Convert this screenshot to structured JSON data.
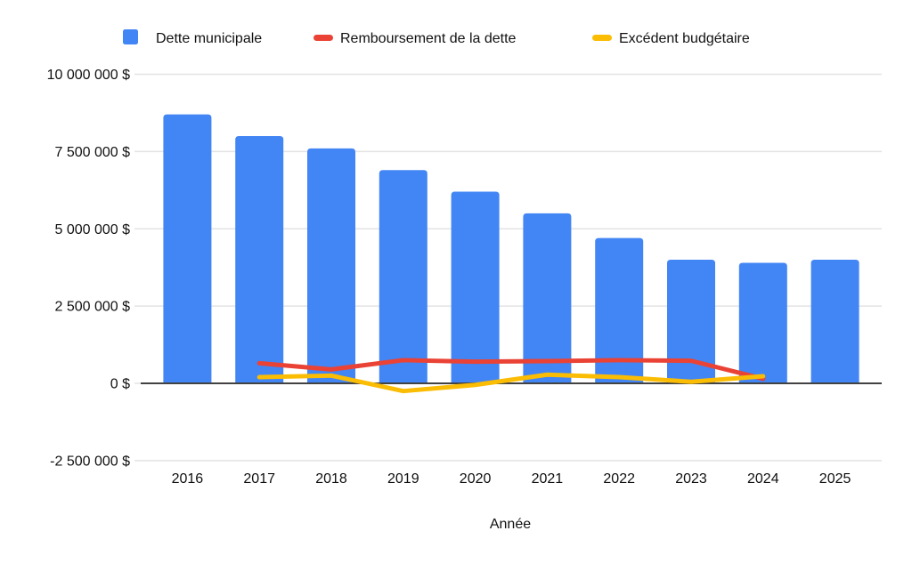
{
  "chart_title": "",
  "legend": {
    "position": "top",
    "items": [
      {
        "label": "Dette municipale",
        "swatch": "square",
        "color": "#4285F4"
      },
      {
        "label": "Remboursement de la dette",
        "swatch": "dash",
        "color": "#EA4335"
      },
      {
        "label": "Excédent budgétaire",
        "swatch": "dash",
        "color": "#FBBC04"
      }
    ]
  },
  "chart_data": {
    "type": "combo",
    "categories": [
      "2016",
      "2017",
      "2018",
      "2019",
      "2020",
      "2021",
      "2022",
      "2023",
      "2024",
      "2025"
    ],
    "series": [
      {
        "name": "Dette municipale",
        "type": "bar",
        "color": "#4285F4",
        "values": [
          8700000,
          8000000,
          7600000,
          6900000,
          6200000,
          5500000,
          4700000,
          4000000,
          3900000,
          4000000
        ]
      },
      {
        "name": "Remboursement de la dette",
        "type": "line",
        "color": "#EA4335",
        "values": [
          null,
          650000,
          450000,
          750000,
          700000,
          720000,
          750000,
          730000,
          150000,
          null
        ]
      },
      {
        "name": "Excédent budgétaire",
        "type": "line",
        "color": "#FBBC04",
        "values": [
          null,
          200000,
          250000,
          -250000,
          -50000,
          280000,
          200000,
          50000,
          230000,
          null
        ]
      }
    ],
    "title": "",
    "xlabel": "Année",
    "ylabel": "",
    "ylim": [
      -2500000,
      10000000
    ],
    "yticks": [
      {
        "value": 10000000,
        "label": "10 000 000 $"
      },
      {
        "value": 7500000,
        "label": "7 500 000 $"
      },
      {
        "value": 5000000,
        "label": "5 000 000 $"
      },
      {
        "value": 2500000,
        "label": "2 500 000 $"
      },
      {
        "value": 0,
        "label": "0 $"
      },
      {
        "value": -2500000,
        "label": "-2 500 000 $"
      }
    ],
    "grid": true,
    "legend_position": "top",
    "colors": {
      "grid": "#E3E3E3",
      "zero_axis": "#424242",
      "text": "#111111",
      "background": "#FFFFFF"
    }
  }
}
